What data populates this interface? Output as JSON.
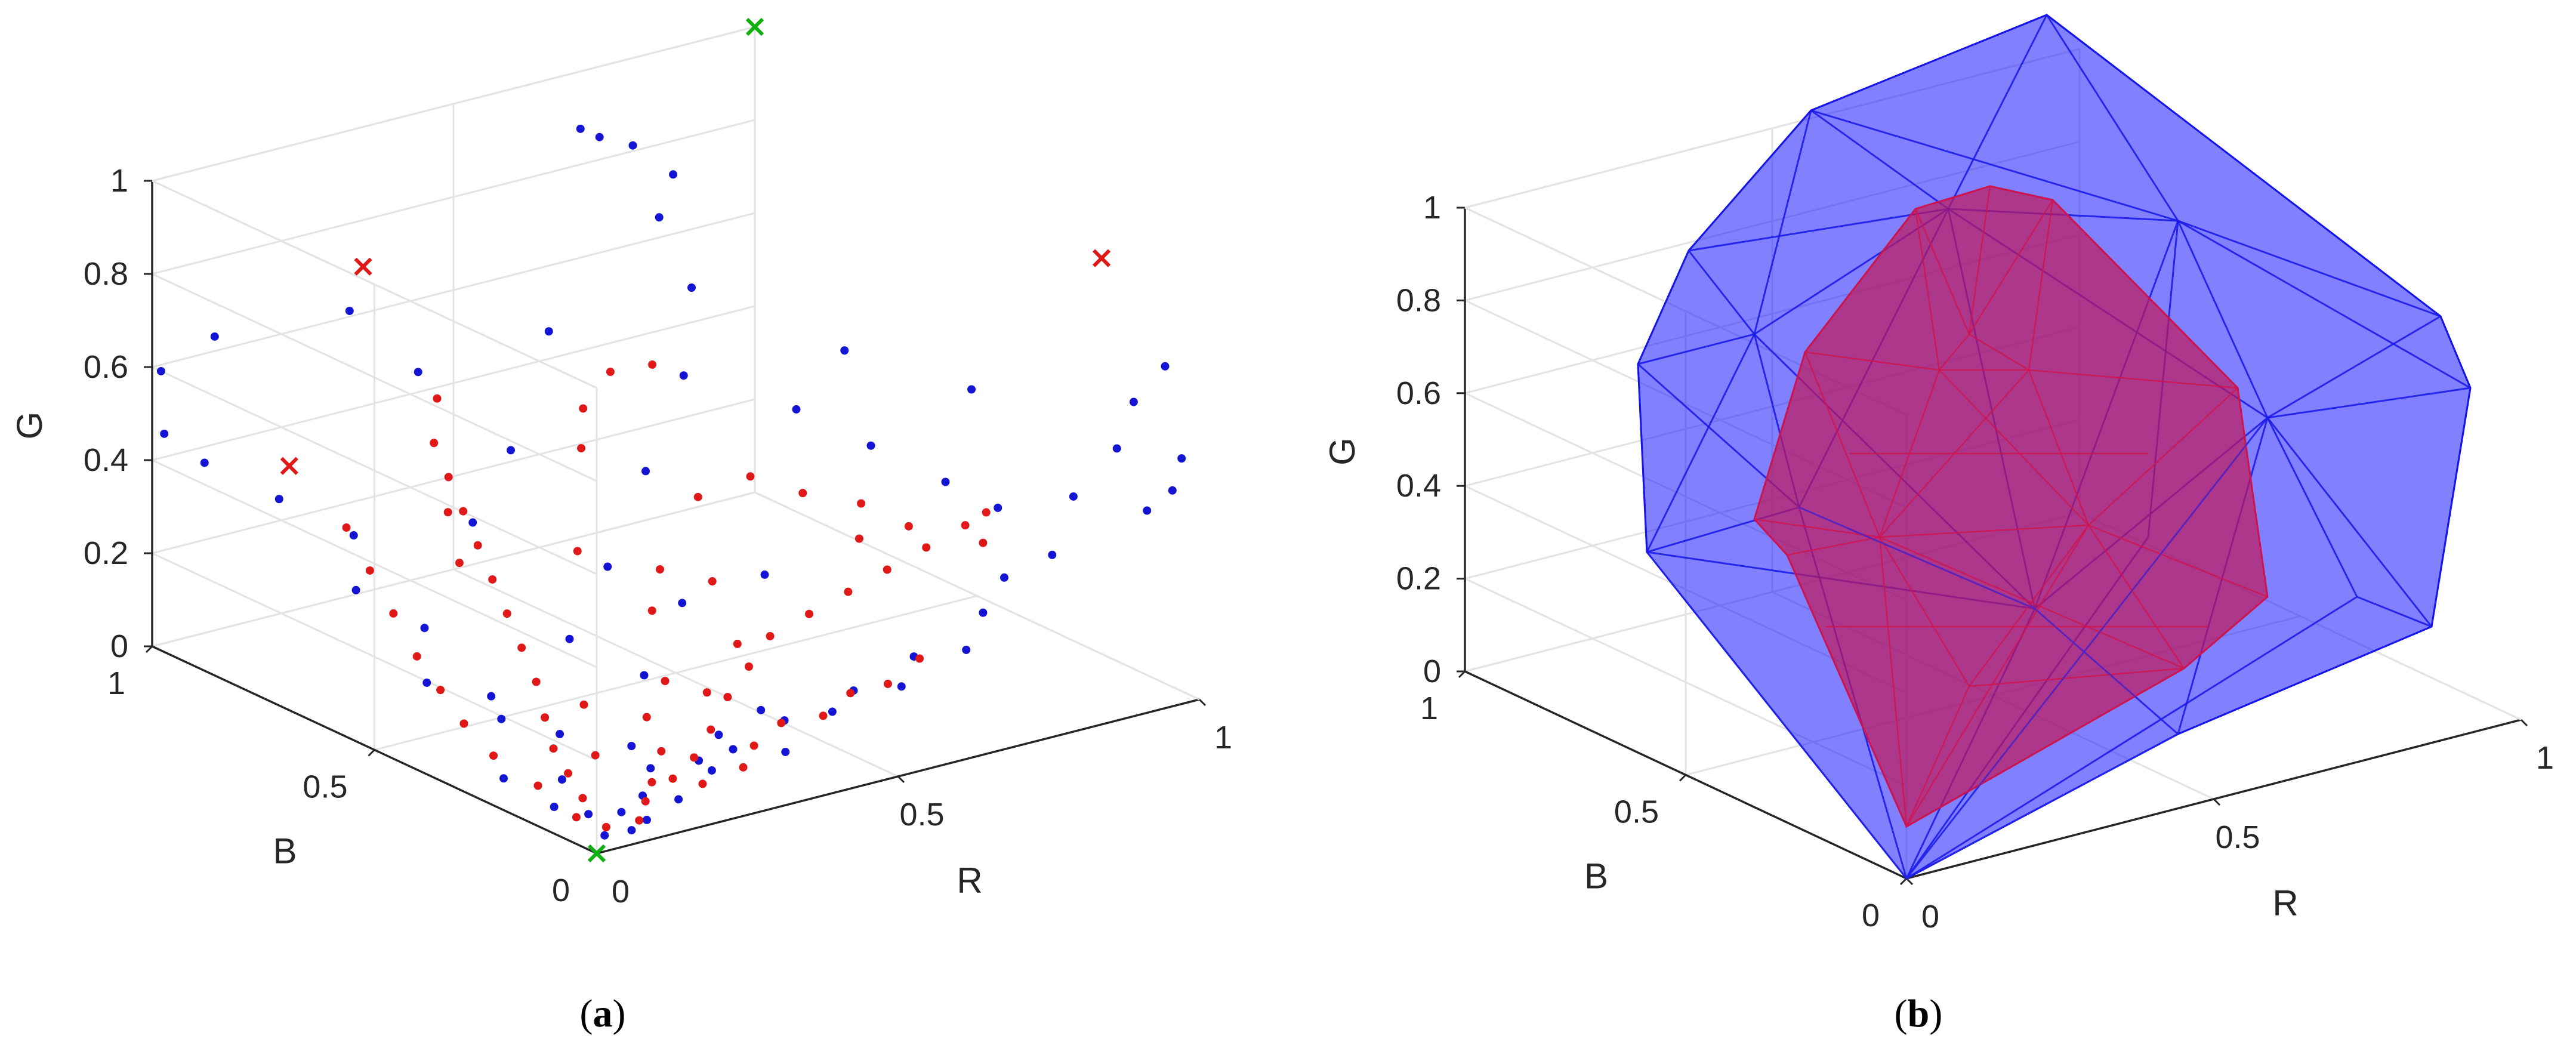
{
  "chart_data": [
    {
      "type": "scatter",
      "panel_label": "a",
      "xlabel": "R",
      "ylabel": "B",
      "zlabel": "G",
      "xlim": [
        0,
        1
      ],
      "ylim": [
        0,
        1
      ],
      "zlim": [
        0,
        1
      ],
      "x_ticks": [
        "0",
        "0.5",
        "1"
      ],
      "y_ticks": [
        "0",
        "0.5",
        "1"
      ],
      "z_ticks": [
        "0",
        "0.2",
        "0.4",
        "0.6",
        "0.8",
        "1"
      ],
      "grid": true,
      "colors": {
        "blue": "#1414d4",
        "red": "#e11818",
        "green": "#10b010"
      },
      "series": [
        {
          "name": "blue points",
          "marker": "dot",
          "color": "#1414d4",
          "points": [
            [
              0.05,
              0.05,
              0.0
            ],
            [
              0.08,
              0.03,
              0.01
            ],
            [
              0.1,
              0.08,
              0.02
            ],
            [
              0.12,
              0.05,
              0.01
            ],
            [
              0.06,
              0.1,
              0.02
            ],
            [
              0.15,
              0.1,
              0.03
            ],
            [
              0.04,
              0.15,
              0.02
            ],
            [
              0.18,
              0.06,
              0.03
            ],
            [
              0.09,
              0.2,
              0.04
            ],
            [
              0.2,
              0.15,
              0.05
            ],
            [
              0.03,
              0.25,
              0.04
            ],
            [
              0.25,
              0.08,
              0.06
            ],
            [
              0.3,
              0.1,
              0.08
            ],
            [
              0.35,
              0.05,
              0.08
            ],
            [
              0.4,
              0.12,
              0.1
            ],
            [
              0.45,
              0.08,
              0.12
            ],
            [
              0.5,
              0.1,
              0.14
            ],
            [
              0.55,
              0.06,
              0.15
            ],
            [
              0.6,
              0.1,
              0.18
            ],
            [
              0.65,
              0.05,
              0.2
            ],
            [
              0.7,
              0.08,
              0.25
            ],
            [
              0.75,
              0.1,
              0.3
            ],
            [
              0.8,
              0.06,
              0.35
            ],
            [
              0.85,
              0.08,
              0.45
            ],
            [
              0.9,
              0.05,
              0.55
            ],
            [
              0.95,
              0.08,
              0.62
            ],
            [
              0.98,
              0.05,
              0.7
            ],
            [
              1.0,
              0.04,
              0.5
            ],
            [
              0.97,
              0.02,
              0.45
            ],
            [
              0.95,
              0.05,
              0.4
            ],
            [
              0.1,
              0.35,
              0.1
            ],
            [
              0.05,
              0.45,
              0.15
            ],
            [
              0.12,
              0.55,
              0.2
            ],
            [
              0.08,
              0.65,
              0.25
            ],
            [
              0.15,
              0.75,
              0.3
            ],
            [
              0.1,
              0.85,
              0.35
            ],
            [
              0.05,
              0.95,
              0.4
            ],
            [
              0.02,
              1.0,
              0.45
            ],
            [
              0.0,
              0.98,
              0.6
            ],
            [
              0.03,
              0.9,
              0.7
            ],
            [
              0.3,
              0.3,
              0.15
            ],
            [
              0.25,
              0.4,
              0.2
            ],
            [
              0.35,
              0.45,
              0.3
            ],
            [
              0.2,
              0.55,
              0.4
            ],
            [
              0.4,
              0.35,
              0.25
            ],
            [
              0.5,
              0.3,
              0.3
            ],
            [
              0.45,
              0.5,
              0.45
            ],
            [
              0.55,
              0.55,
              0.6
            ],
            [
              0.6,
              0.6,
              0.75
            ],
            [
              0.62,
              0.7,
              0.85
            ],
            [
              0.65,
              0.8,
              0.95
            ],
            [
              0.6,
              0.85,
              0.98
            ],
            [
              0.58,
              0.78,
              1.0
            ],
            [
              0.68,
              0.75,
              0.9
            ],
            [
              0.7,
              0.5,
              0.5
            ],
            [
              0.75,
              0.4,
              0.45
            ],
            [
              0.8,
              0.3,
              0.4
            ],
            [
              0.78,
              0.5,
              0.6
            ],
            [
              0.85,
              0.25,
              0.35
            ],
            [
              0.88,
              0.35,
              0.55
            ],
            [
              0.35,
              0.2,
              0.05
            ],
            [
              0.28,
              0.15,
              0.04
            ],
            [
              0.22,
              0.22,
              0.06
            ],
            [
              0.42,
              0.2,
              0.08
            ],
            [
              0.16,
              0.3,
              0.07
            ],
            [
              0.12,
              0.4,
              0.12
            ],
            [
              0.3,
              0.6,
              0.5
            ],
            [
              0.22,
              0.7,
              0.65
            ],
            [
              0.18,
              0.8,
              0.75
            ],
            [
              0.4,
              0.65,
              0.7
            ]
          ]
        },
        {
          "name": "red points",
          "marker": "dot",
          "color": "#e11818",
          "points": [
            [
              0.06,
              0.06,
              0.01
            ],
            [
              0.1,
              0.04,
              0.02
            ],
            [
              0.04,
              0.1,
              0.02
            ],
            [
              0.14,
              0.08,
              0.03
            ],
            [
              0.08,
              0.14,
              0.03
            ],
            [
              0.2,
              0.1,
              0.05
            ],
            [
              0.1,
              0.2,
              0.05
            ],
            [
              0.25,
              0.12,
              0.07
            ],
            [
              0.12,
              0.26,
              0.07
            ],
            [
              0.3,
              0.15,
              0.1
            ],
            [
              0.15,
              0.32,
              0.1
            ],
            [
              0.35,
              0.18,
              0.14
            ],
            [
              0.18,
              0.38,
              0.14
            ],
            [
              0.4,
              0.2,
              0.18
            ],
            [
              0.2,
              0.44,
              0.18
            ],
            [
              0.45,
              0.22,
              0.22
            ],
            [
              0.22,
              0.5,
              0.22
            ],
            [
              0.5,
              0.2,
              0.26
            ],
            [
              0.24,
              0.56,
              0.26
            ],
            [
              0.55,
              0.18,
              0.3
            ],
            [
              0.26,
              0.62,
              0.3
            ],
            [
              0.6,
              0.16,
              0.34
            ],
            [
              0.28,
              0.68,
              0.34
            ],
            [
              0.65,
              0.14,
              0.38
            ],
            [
              0.3,
              0.74,
              0.38
            ],
            [
              0.7,
              0.12,
              0.42
            ],
            [
              0.32,
              0.8,
              0.42
            ],
            [
              0.72,
              0.1,
              0.45
            ],
            [
              0.34,
              0.82,
              0.5
            ],
            [
              0.7,
              0.08,
              0.4
            ],
            [
              0.18,
              0.12,
              0.04
            ],
            [
              0.22,
              0.06,
              0.05
            ],
            [
              0.05,
              0.2,
              0.04
            ],
            [
              0.28,
              0.05,
              0.07
            ],
            [
              0.32,
              0.08,
              0.09
            ],
            [
              0.38,
              0.1,
              0.11
            ],
            [
              0.42,
              0.06,
              0.13
            ],
            [
              0.48,
              0.08,
              0.15
            ],
            [
              0.52,
              0.05,
              0.17
            ],
            [
              0.58,
              0.06,
              0.2
            ],
            [
              0.05,
              0.3,
              0.06
            ],
            [
              0.06,
              0.38,
              0.09
            ],
            [
              0.08,
              0.46,
              0.12
            ],
            [
              0.1,
              0.54,
              0.15
            ],
            [
              0.12,
              0.62,
              0.2
            ],
            [
              0.14,
              0.7,
              0.25
            ],
            [
              0.16,
              0.78,
              0.3
            ],
            [
              0.35,
              0.35,
              0.25
            ],
            [
              0.3,
              0.45,
              0.35
            ],
            [
              0.4,
              0.4,
              0.3
            ],
            [
              0.45,
              0.35,
              0.28
            ],
            [
              0.5,
              0.45,
              0.4
            ],
            [
              0.55,
              0.4,
              0.45
            ],
            [
              0.6,
              0.35,
              0.42
            ],
            [
              0.38,
              0.55,
              0.5
            ],
            [
              0.42,
              0.6,
              0.55
            ],
            [
              0.48,
              0.62,
              0.6
            ],
            [
              0.52,
              0.58,
              0.62
            ],
            [
              0.2,
              0.3,
              0.12
            ],
            [
              0.26,
              0.24,
              0.1
            ],
            [
              0.32,
              0.28,
              0.14
            ],
            [
              0.16,
              0.22,
              0.06
            ],
            [
              0.24,
              0.18,
              0.06
            ],
            [
              0.36,
              0.24,
              0.12
            ],
            [
              0.44,
              0.28,
              0.18
            ],
            [
              0.62,
              0.25,
              0.36
            ],
            [
              0.66,
              0.3,
              0.4
            ],
            [
              0.68,
              0.22,
              0.38
            ],
            [
              0.2,
              0.58,
              0.3
            ],
            [
              0.24,
              0.66,
              0.36
            ]
          ]
        },
        {
          "name": "red markers",
          "marker": "x",
          "color": "#e11818",
          "points": [
            [
              0.08,
              0.8,
              0.45
            ],
            [
              1.0,
              0.22,
              0.85
            ],
            [
              0.35,
              1.0,
              0.7
            ]
          ]
        },
        {
          "name": "green markers",
          "marker": "x",
          "color": "#10b010",
          "points": [
            [
              0,
              0,
              0
            ],
            [
              1,
              1,
              1
            ]
          ]
        }
      ]
    },
    {
      "type": "3d-surface",
      "panel_label": "b",
      "xlabel": "R",
      "ylabel": "B",
      "zlabel": "G",
      "xlim": [
        0,
        1
      ],
      "ylim": [
        0,
        1
      ],
      "zlim": [
        0,
        1
      ],
      "x_ticks": [
        "0",
        "0.5",
        "1"
      ],
      "y_ticks": [
        "0",
        "0.5",
        "1"
      ],
      "z_ticks": [
        "0",
        "0.2",
        "0.4",
        "0.6",
        "0.8",
        "1"
      ],
      "grid": true,
      "series": [
        {
          "name": "outer hull",
          "color": "#1a1aff",
          "fill_opacity": 0.55
        },
        {
          "name": "inner hull",
          "color": "#c0185a",
          "fill_opacity": 0.7
        }
      ]
    }
  ],
  "captions": {
    "a": "a",
    "b": "b"
  }
}
